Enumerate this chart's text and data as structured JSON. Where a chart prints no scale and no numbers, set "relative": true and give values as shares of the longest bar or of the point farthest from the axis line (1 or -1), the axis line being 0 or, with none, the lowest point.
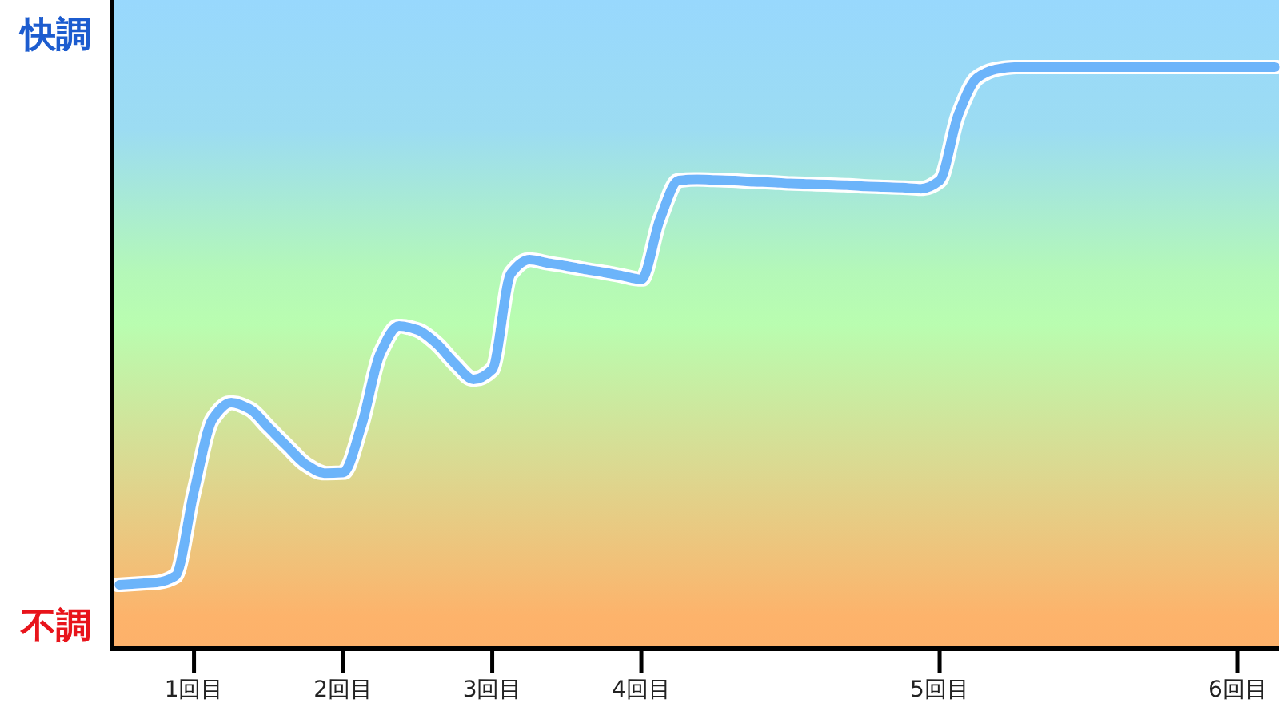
{
  "chart_data": {
    "type": "line",
    "relative": true,
    "categories": [
      null,
      null,
      null,
      null,
      "1回目",
      null,
      null,
      null,
      null,
      null,
      null,
      null,
      "2回目",
      null,
      null,
      null,
      null,
      null,
      null,
      null,
      "3回目",
      null,
      null,
      null,
      null,
      null,
      null,
      null,
      "4回目",
      null,
      null,
      null,
      null,
      null,
      null,
      null,
      null,
      null,
      null,
      null,
      null,
      null,
      null,
      null,
      "5回目",
      null,
      null,
      null,
      null,
      null,
      null,
      null,
      null,
      null,
      null,
      null,
      null,
      null,
      null,
      null,
      "6回目",
      null,
      null
    ],
    "series": [
      {
        "color": "#6cb4fa",
        "values": [
          0.11,
          0.112,
          0.114,
          0.125,
          0.27,
          0.395,
          0.423,
          0.412,
          0.38,
          0.348,
          0.317,
          0.302,
          0.303,
          0.385,
          0.508,
          0.555,
          0.548,
          0.525,
          0.49,
          0.463,
          0.48,
          0.645,
          0.669,
          0.663,
          0.658,
          0.652,
          0.647,
          0.641,
          0.635,
          0.738,
          0.805,
          0.807,
          0.806,
          0.805,
          0.803,
          0.802,
          0.8,
          0.799,
          0.798,
          0.797,
          0.795,
          0.794,
          0.793,
          0.791,
          0.805,
          0.918,
          0.981,
          0.996,
          1.0,
          1.0,
          1.0,
          1.0,
          1.0,
          1.0,
          1.0,
          1.0,
          1.0,
          1.0,
          1.0,
          1.0,
          1.0,
          1.0,
          1.0
        ]
      }
    ],
    "tick_labels": "x",
    "line_style": "solid",
    "annotations": [
      "快調",
      "不調"
    ]
  }
}
